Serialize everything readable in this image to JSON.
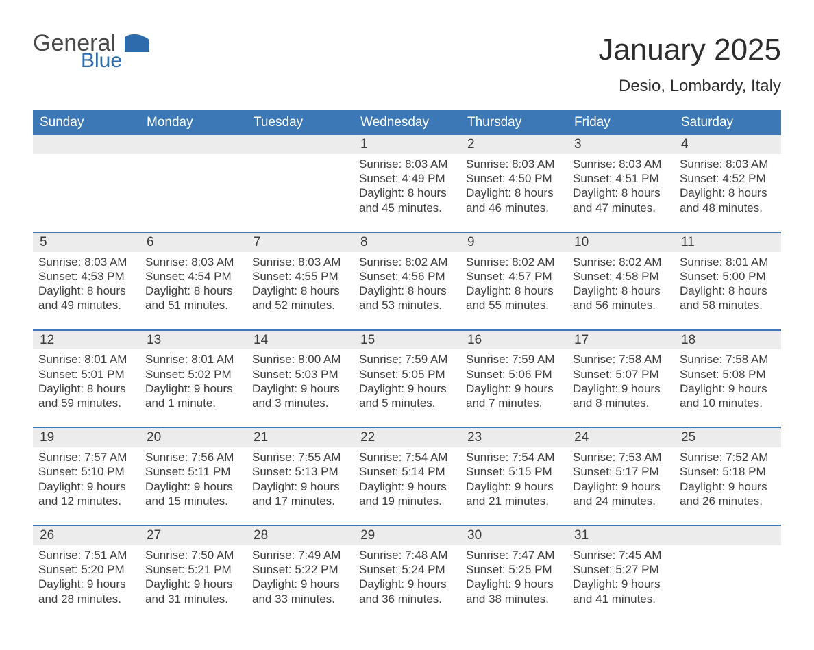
{
  "brand": {
    "line1": "General",
    "line2": "Blue"
  },
  "title": "January 2025",
  "location": "Desio, Lombardy, Italy",
  "columns": [
    "Sunday",
    "Monday",
    "Tuesday",
    "Wednesday",
    "Thursday",
    "Friday",
    "Saturday"
  ],
  "labels": {
    "sunrise": "Sunrise:",
    "sunset": "Sunset:",
    "daylight": "Daylight:"
  },
  "colors": {
    "header_blue": "#3b78b5",
    "rule_blue": "#3b78b5",
    "day_strip": "#ececec",
    "text_dark": "#323232",
    "logo_gray": "#4a4a4a",
    "logo_blue": "#2e6bac",
    "background": "#ffffff"
  },
  "typography": {
    "title_fontsize_pt": 33,
    "subtitle_fontsize_pt": 18,
    "column_header_fontsize_pt": 14,
    "body_fontsize_pt": 13,
    "font_family": "Arial"
  },
  "layout": {
    "type": "calendar_month_grid",
    "columns": 7,
    "week_separator": "2px solid blue rule above day-number strip"
  },
  "weeks": [
    [
      null,
      null,
      null,
      {
        "d": "1",
        "sunrise": "8:03 AM",
        "sunset": "4:49 PM",
        "daylight": "8 hours and 45 minutes."
      },
      {
        "d": "2",
        "sunrise": "8:03 AM",
        "sunset": "4:50 PM",
        "daylight": "8 hours and 46 minutes."
      },
      {
        "d": "3",
        "sunrise": "8:03 AM",
        "sunset": "4:51 PM",
        "daylight": "8 hours and 47 minutes."
      },
      {
        "d": "4",
        "sunrise": "8:03 AM",
        "sunset": "4:52 PM",
        "daylight": "8 hours and 48 minutes."
      }
    ],
    [
      {
        "d": "5",
        "sunrise": "8:03 AM",
        "sunset": "4:53 PM",
        "daylight": "8 hours and 49 minutes."
      },
      {
        "d": "6",
        "sunrise": "8:03 AM",
        "sunset": "4:54 PM",
        "daylight": "8 hours and 51 minutes."
      },
      {
        "d": "7",
        "sunrise": "8:03 AM",
        "sunset": "4:55 PM",
        "daylight": "8 hours and 52 minutes."
      },
      {
        "d": "8",
        "sunrise": "8:02 AM",
        "sunset": "4:56 PM",
        "daylight": "8 hours and 53 minutes."
      },
      {
        "d": "9",
        "sunrise": "8:02 AM",
        "sunset": "4:57 PM",
        "daylight": "8 hours and 55 minutes."
      },
      {
        "d": "10",
        "sunrise": "8:02 AM",
        "sunset": "4:58 PM",
        "daylight": "8 hours and 56 minutes."
      },
      {
        "d": "11",
        "sunrise": "8:01 AM",
        "sunset": "5:00 PM",
        "daylight": "8 hours and 58 minutes."
      }
    ],
    [
      {
        "d": "12",
        "sunrise": "8:01 AM",
        "sunset": "5:01 PM",
        "daylight": "8 hours and 59 minutes."
      },
      {
        "d": "13",
        "sunrise": "8:01 AM",
        "sunset": "5:02 PM",
        "daylight": "9 hours and 1 minute."
      },
      {
        "d": "14",
        "sunrise": "8:00 AM",
        "sunset": "5:03 PM",
        "daylight": "9 hours and 3 minutes."
      },
      {
        "d": "15",
        "sunrise": "7:59 AM",
        "sunset": "5:05 PM",
        "daylight": "9 hours and 5 minutes."
      },
      {
        "d": "16",
        "sunrise": "7:59 AM",
        "sunset": "5:06 PM",
        "daylight": "9 hours and 7 minutes."
      },
      {
        "d": "17",
        "sunrise": "7:58 AM",
        "sunset": "5:07 PM",
        "daylight": "9 hours and 8 minutes."
      },
      {
        "d": "18",
        "sunrise": "7:58 AM",
        "sunset": "5:08 PM",
        "daylight": "9 hours and 10 minutes."
      }
    ],
    [
      {
        "d": "19",
        "sunrise": "7:57 AM",
        "sunset": "5:10 PM",
        "daylight": "9 hours and 12 minutes."
      },
      {
        "d": "20",
        "sunrise": "7:56 AM",
        "sunset": "5:11 PM",
        "daylight": "9 hours and 15 minutes."
      },
      {
        "d": "21",
        "sunrise": "7:55 AM",
        "sunset": "5:13 PM",
        "daylight": "9 hours and 17 minutes."
      },
      {
        "d": "22",
        "sunrise": "7:54 AM",
        "sunset": "5:14 PM",
        "daylight": "9 hours and 19 minutes."
      },
      {
        "d": "23",
        "sunrise": "7:54 AM",
        "sunset": "5:15 PM",
        "daylight": "9 hours and 21 minutes."
      },
      {
        "d": "24",
        "sunrise": "7:53 AM",
        "sunset": "5:17 PM",
        "daylight": "9 hours and 24 minutes."
      },
      {
        "d": "25",
        "sunrise": "7:52 AM",
        "sunset": "5:18 PM",
        "daylight": "9 hours and 26 minutes."
      }
    ],
    [
      {
        "d": "26",
        "sunrise": "7:51 AM",
        "sunset": "5:20 PM",
        "daylight": "9 hours and 28 minutes."
      },
      {
        "d": "27",
        "sunrise": "7:50 AM",
        "sunset": "5:21 PM",
        "daylight": "9 hours and 31 minutes."
      },
      {
        "d": "28",
        "sunrise": "7:49 AM",
        "sunset": "5:22 PM",
        "daylight": "9 hours and 33 minutes."
      },
      {
        "d": "29",
        "sunrise": "7:48 AM",
        "sunset": "5:24 PM",
        "daylight": "9 hours and 36 minutes."
      },
      {
        "d": "30",
        "sunrise": "7:47 AM",
        "sunset": "5:25 PM",
        "daylight": "9 hours and 38 minutes."
      },
      {
        "d": "31",
        "sunrise": "7:45 AM",
        "sunset": "5:27 PM",
        "daylight": "9 hours and 41 minutes."
      },
      null
    ]
  ]
}
